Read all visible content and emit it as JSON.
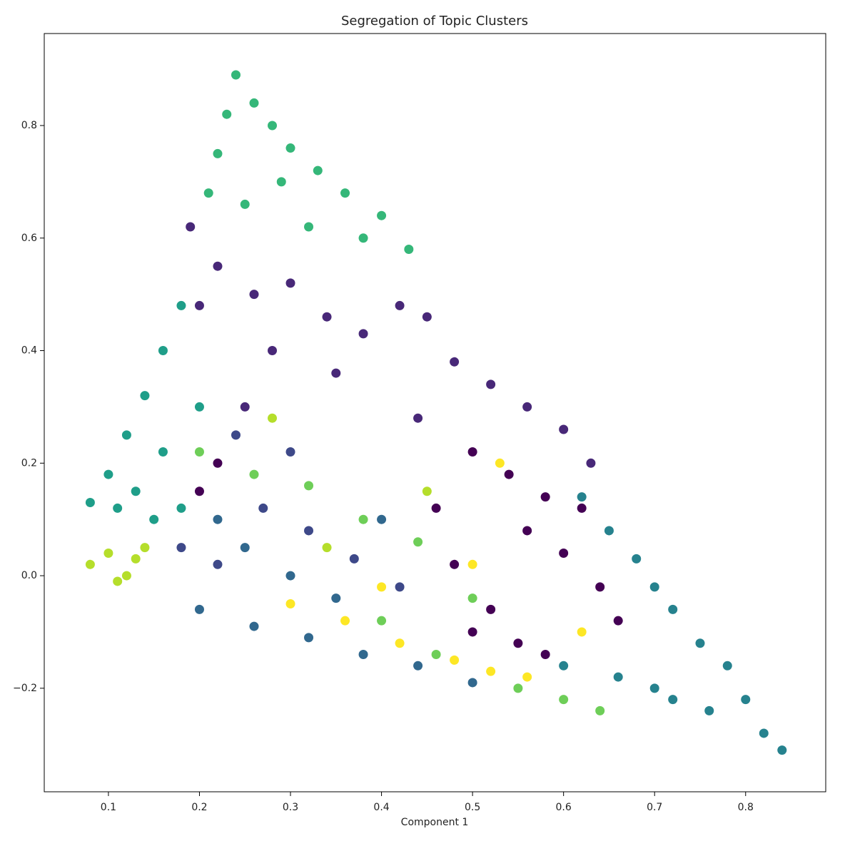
{
  "chart_data": {
    "type": "scatter",
    "title": "Segregation of Topic Clusters",
    "x_label": "Component 1",
    "xlim": [
      0.0295,
      0.888
    ],
    "ylim": [
      -0.384,
      0.9635
    ],
    "xticks": [
      0.1,
      0.2,
      0.3,
      0.4,
      0.5,
      0.6,
      0.7,
      0.8
    ],
    "yticks": [
      {
        "value": -0.2,
        "label": "−0.2"
      },
      {
        "value": 0,
        "label": "0.0"
      },
      0.2,
      0.4,
      0.6,
      0.8
    ],
    "grid": false,
    "series": [
      {
        "color": "#1f9e89",
        "x": [
          0.08,
          0.1,
          0.12,
          0.14,
          0.16,
          0.18,
          0.13,
          0.16,
          0.11,
          0.15,
          0.2,
          0.18
        ],
        "values": [
          0.13,
          0.18,
          0.25,
          0.32,
          0.4,
          0.48,
          0.15,
          0.22,
          0.12,
          0.1,
          0.3,
          0.12
        ]
      },
      {
        "color": "#26828e",
        "x": [
          0.62,
          0.65,
          0.68,
          0.7,
          0.72,
          0.75,
          0.78,
          0.8,
          0.84,
          0.76,
          0.7,
          0.66,
          0.6,
          0.72,
          0.82
        ],
        "values": [
          0.14,
          0.08,
          0.03,
          -0.02,
          -0.06,
          -0.12,
          -0.16,
          -0.22,
          -0.31,
          -0.24,
          -0.2,
          -0.18,
          -0.16,
          -0.22,
          -0.28
        ]
      },
      {
        "color": "#31688e",
        "x": [
          0.2,
          0.26,
          0.32,
          0.38,
          0.44,
          0.5,
          0.25,
          0.3,
          0.35,
          0.22,
          0.4
        ],
        "values": [
          -0.06,
          -0.09,
          -0.11,
          -0.14,
          -0.16,
          -0.19,
          0.05,
          0.0,
          -0.04,
          0.1,
          0.1
        ]
      },
      {
        "color": "#35b779",
        "x": [
          0.24,
          0.23,
          0.22,
          0.21,
          0.26,
          0.28,
          0.3,
          0.33,
          0.36,
          0.4,
          0.43,
          0.25,
          0.29,
          0.32,
          0.38
        ],
        "values": [
          0.89,
          0.82,
          0.75,
          0.68,
          0.84,
          0.8,
          0.76,
          0.72,
          0.68,
          0.64,
          0.58,
          0.66,
          0.7,
          0.62,
          0.6
        ]
      },
      {
        "color": "#482878",
        "x": [
          0.19,
          0.22,
          0.2,
          0.26,
          0.3,
          0.34,
          0.38,
          0.42,
          0.45,
          0.48,
          0.52,
          0.56,
          0.6,
          0.63,
          0.28,
          0.35,
          0.44,
          0.25
        ],
        "values": [
          0.62,
          0.55,
          0.48,
          0.5,
          0.52,
          0.46,
          0.43,
          0.48,
          0.46,
          0.38,
          0.34,
          0.3,
          0.26,
          0.2,
          0.4,
          0.36,
          0.28,
          0.3
        ]
      },
      {
        "color": "#3e4989",
        "x": [
          0.18,
          0.22,
          0.27,
          0.32,
          0.37,
          0.42,
          0.3,
          0.24
        ],
        "values": [
          0.05,
          0.02,
          0.12,
          0.08,
          0.03,
          -0.02,
          0.22,
          0.25
        ]
      },
      {
        "color": "#6ece58",
        "x": [
          0.2,
          0.26,
          0.32,
          0.38,
          0.44,
          0.5,
          0.55,
          0.6,
          0.64,
          0.46,
          0.4
        ],
        "values": [
          0.22,
          0.18,
          0.16,
          0.1,
          0.06,
          -0.04,
          -0.2,
          -0.22,
          -0.24,
          -0.14,
          -0.08
        ]
      },
      {
        "color": "#b5de2b",
        "x": [
          0.08,
          0.1,
          0.12,
          0.14,
          0.11,
          0.13,
          0.28,
          0.34,
          0.45
        ],
        "values": [
          0.02,
          0.04,
          0.0,
          0.05,
          -0.01,
          0.03,
          0.28,
          0.05,
          0.15
        ]
      },
      {
        "color": "#fde725",
        "x": [
          0.3,
          0.36,
          0.42,
          0.48,
          0.52,
          0.56,
          0.4,
          0.53,
          0.62,
          0.5
        ],
        "values": [
          -0.05,
          -0.08,
          -0.12,
          -0.15,
          -0.17,
          -0.18,
          -0.02,
          0.2,
          -0.1,
          0.02
        ]
      },
      {
        "color": "#440154",
        "x": [
          0.5,
          0.54,
          0.58,
          0.62,
          0.56,
          0.6,
          0.64,
          0.52,
          0.55,
          0.58,
          0.5,
          0.46,
          0.66,
          0.48,
          0.22,
          0.2
        ],
        "values": [
          0.22,
          0.18,
          0.14,
          0.12,
          0.08,
          0.04,
          -0.02,
          -0.06,
          -0.12,
          -0.14,
          -0.1,
          0.12,
          -0.08,
          0.02,
          0.2,
          0.15
        ]
      }
    ]
  }
}
